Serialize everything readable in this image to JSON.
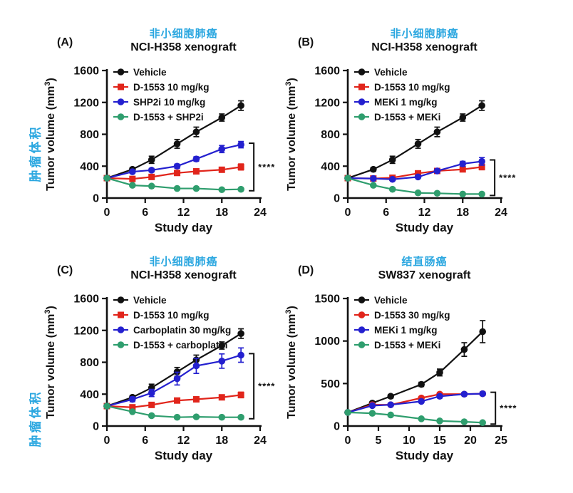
{
  "colors": {
    "accent_blue_title": "#2ba7e0",
    "black": "#111111",
    "red": "#e1251b",
    "blue": "#2420cf",
    "green": "#2f9e6e"
  },
  "side_labels": [
    {
      "text": "肿瘤体积"
    },
    {
      "text": "肿瘤体积"
    }
  ],
  "panels": [
    {
      "letter": "(A)",
      "title_cn": "非小细胞肺癌",
      "subtitle": "NCI-H358 xenograft",
      "chart_data": {
        "type": "line",
        "xlabel": "Study day",
        "ylabel": "Tumor volume (mm³)",
        "xlim": [
          0,
          24
        ],
        "xticks": [
          0,
          6,
          12,
          18,
          24
        ],
        "ylim": [
          0,
          1600
        ],
        "yticks": [
          0,
          400,
          800,
          1200,
          1600
        ],
        "x": [
          0,
          4,
          7,
          11,
          14,
          18,
          21
        ],
        "series": [
          {
            "name": "Vehicle",
            "color": "#111111",
            "marker": "circle",
            "values": [
              250,
              360,
              480,
              680,
              830,
              1010,
              1160
            ],
            "err": [
              15,
              25,
              45,
              55,
              60,
              45,
              60
            ]
          },
          {
            "name": "D-1553 10 mg/kg",
            "color": "#e1251b",
            "marker": "square",
            "values": [
              250,
              240,
              265,
              315,
              335,
              355,
              390
            ],
            "err": [
              10,
              10,
              12,
              15,
              18,
              20,
              38
            ]
          },
          {
            "name": "SHP2i 10 mg/kg",
            "color": "#2420cf",
            "marker": "circle",
            "values": [
              250,
              330,
              350,
              400,
              490,
              615,
              670
            ],
            "err": [
              12,
              18,
              22,
              25,
              28,
              45,
              40
            ]
          },
          {
            "name": "D-1553 + SHP2i",
            "color": "#2f9e6e",
            "marker": "circle",
            "values": [
              250,
              160,
              150,
              120,
              120,
              105,
              110
            ],
            "err": [
              8,
              8,
              8,
              8,
              8,
              8,
              8
            ]
          }
        ],
        "significance": {
          "label": "****",
          "from_series": 2,
          "to_series": 3
        },
        "legend_position": "top-left",
        "grid": false
      }
    },
    {
      "letter": "(B)",
      "title_cn": "非小细胞肺癌",
      "subtitle": "NCI-H358 xenograft",
      "chart_data": {
        "type": "line",
        "xlabel": "Study day",
        "ylabel": "Tumor volume (mm³)",
        "xlim": [
          0,
          24
        ],
        "xticks": [
          0,
          6,
          12,
          18,
          24
        ],
        "ylim": [
          0,
          1600
        ],
        "yticks": [
          0,
          400,
          800,
          1200,
          1600
        ],
        "x": [
          0,
          4,
          7,
          11,
          14,
          18,
          21
        ],
        "series": [
          {
            "name": "Vehicle",
            "color": "#111111",
            "marker": "circle",
            "values": [
              250,
              360,
              480,
              680,
              830,
              1010,
              1160
            ],
            "err": [
              15,
              25,
              45,
              55,
              60,
              45,
              60
            ]
          },
          {
            "name": "D-1553 10 mg/kg",
            "color": "#e1251b",
            "marker": "square",
            "values": [
              250,
              245,
              255,
              310,
              340,
              360,
              390
            ],
            "err": [
              10,
              10,
              12,
              15,
              28,
              30,
              35
            ]
          },
          {
            "name": "MEKi 1 mg/kg",
            "color": "#2420cf",
            "marker": "circle",
            "values": [
              250,
              245,
              235,
              265,
              340,
              430,
              460
            ],
            "err": [
              10,
              10,
              12,
              15,
              20,
              30,
              48
            ]
          },
          {
            "name": "D-1553 + MEKi",
            "color": "#2f9e6e",
            "marker": "circle",
            "values": [
              250,
              160,
              110,
              65,
              60,
              50,
              50
            ],
            "err": [
              8,
              8,
              8,
              8,
              8,
              8,
              8
            ]
          }
        ],
        "significance": {
          "label": "****",
          "from_series": 2,
          "to_series": 3
        },
        "legend_position": "top-left",
        "grid": false
      }
    },
    {
      "letter": "(C)",
      "title_cn": "非小细胞肺癌",
      "subtitle": "NCI-H358 xenograft",
      "chart_data": {
        "type": "line",
        "xlabel": "Study day",
        "ylabel": "Tumor volume (mm³)",
        "xlim": [
          0,
          24
        ],
        "xticks": [
          0,
          6,
          12,
          18,
          24
        ],
        "ylim": [
          0,
          1600
        ],
        "yticks": [
          0,
          400,
          800,
          1200,
          1600
        ],
        "x": [
          0,
          4,
          7,
          11,
          14,
          18,
          21
        ],
        "series": [
          {
            "name": "Vehicle",
            "color": "#111111",
            "marker": "circle",
            "values": [
              250,
              360,
              480,
              680,
              830,
              1010,
              1160
            ],
            "err": [
              15,
              25,
              45,
              55,
              60,
              45,
              60
            ]
          },
          {
            "name": "D-1553 10 mg/kg",
            "color": "#e1251b",
            "marker": "square",
            "values": [
              250,
              235,
              265,
              320,
              335,
              360,
              390
            ],
            "err": [
              10,
              10,
              12,
              15,
              18,
              20,
              35
            ]
          },
          {
            "name": "Carboplatin 30 mg/kg",
            "color": "#2420cf",
            "marker": "circle",
            "values": [
              250,
              335,
              415,
              595,
              755,
              815,
              890
            ],
            "err": [
              15,
              30,
              45,
              80,
              95,
              90,
              90
            ]
          },
          {
            "name": "D-1553 + carboplatin",
            "color": "#2f9e6e",
            "marker": "circle",
            "values": [
              250,
              180,
              130,
              110,
              115,
              110,
              110
            ],
            "err": [
              8,
              10,
              8,
              8,
              8,
              8,
              8
            ]
          }
        ],
        "significance": {
          "label": "****",
          "from_series": 2,
          "to_series": 3
        },
        "legend_position": "top-left",
        "grid": false
      }
    },
    {
      "letter": "(D)",
      "title_cn": "结直肠癌",
      "subtitle": "SW837 xenograft",
      "chart_data": {
        "type": "line",
        "xlabel": "Study day",
        "ylabel": "Tumor volume (mm³)",
        "xlim": [
          0,
          25
        ],
        "xticks": [
          0,
          5,
          10,
          15,
          20,
          25
        ],
        "ylim": [
          0,
          1500
        ],
        "yticks": [
          0,
          500,
          1000,
          1500
        ],
        "x": [
          0,
          4,
          7,
          12,
          15,
          19,
          22
        ],
        "series": [
          {
            "name": "Vehicle",
            "color": "#111111",
            "marker": "circle",
            "values": [
              160,
              270,
              350,
              490,
              630,
              900,
              1110
            ],
            "err": [
              10,
              15,
              20,
              25,
              40,
              80,
              130
            ]
          },
          {
            "name": "D-1553 30 mg/kg",
            "color": "#e1251b",
            "marker": "circle",
            "values": [
              160,
              250,
              250,
              330,
              375,
              375,
              380
            ],
            "err": [
              8,
              10,
              10,
              15,
              18,
              18,
              20
            ]
          },
          {
            "name": "MEKi 1 mg/kg",
            "color": "#2420cf",
            "marker": "circle",
            "values": [
              160,
              240,
              250,
              290,
              350,
              375,
              380
            ],
            "err": [
              8,
              10,
              10,
              15,
              18,
              18,
              20
            ]
          },
          {
            "name": "D-1553 + MEKi",
            "color": "#2f9e6e",
            "marker": "circle",
            "values": [
              160,
              150,
              130,
              85,
              60,
              50,
              40
            ],
            "err": [
              8,
              8,
              8,
              8,
              8,
              8,
              8
            ]
          }
        ],
        "significance": {
          "label": "****",
          "from_series": 2,
          "to_series": 3
        },
        "legend_position": "top-left",
        "grid": false
      }
    }
  ]
}
